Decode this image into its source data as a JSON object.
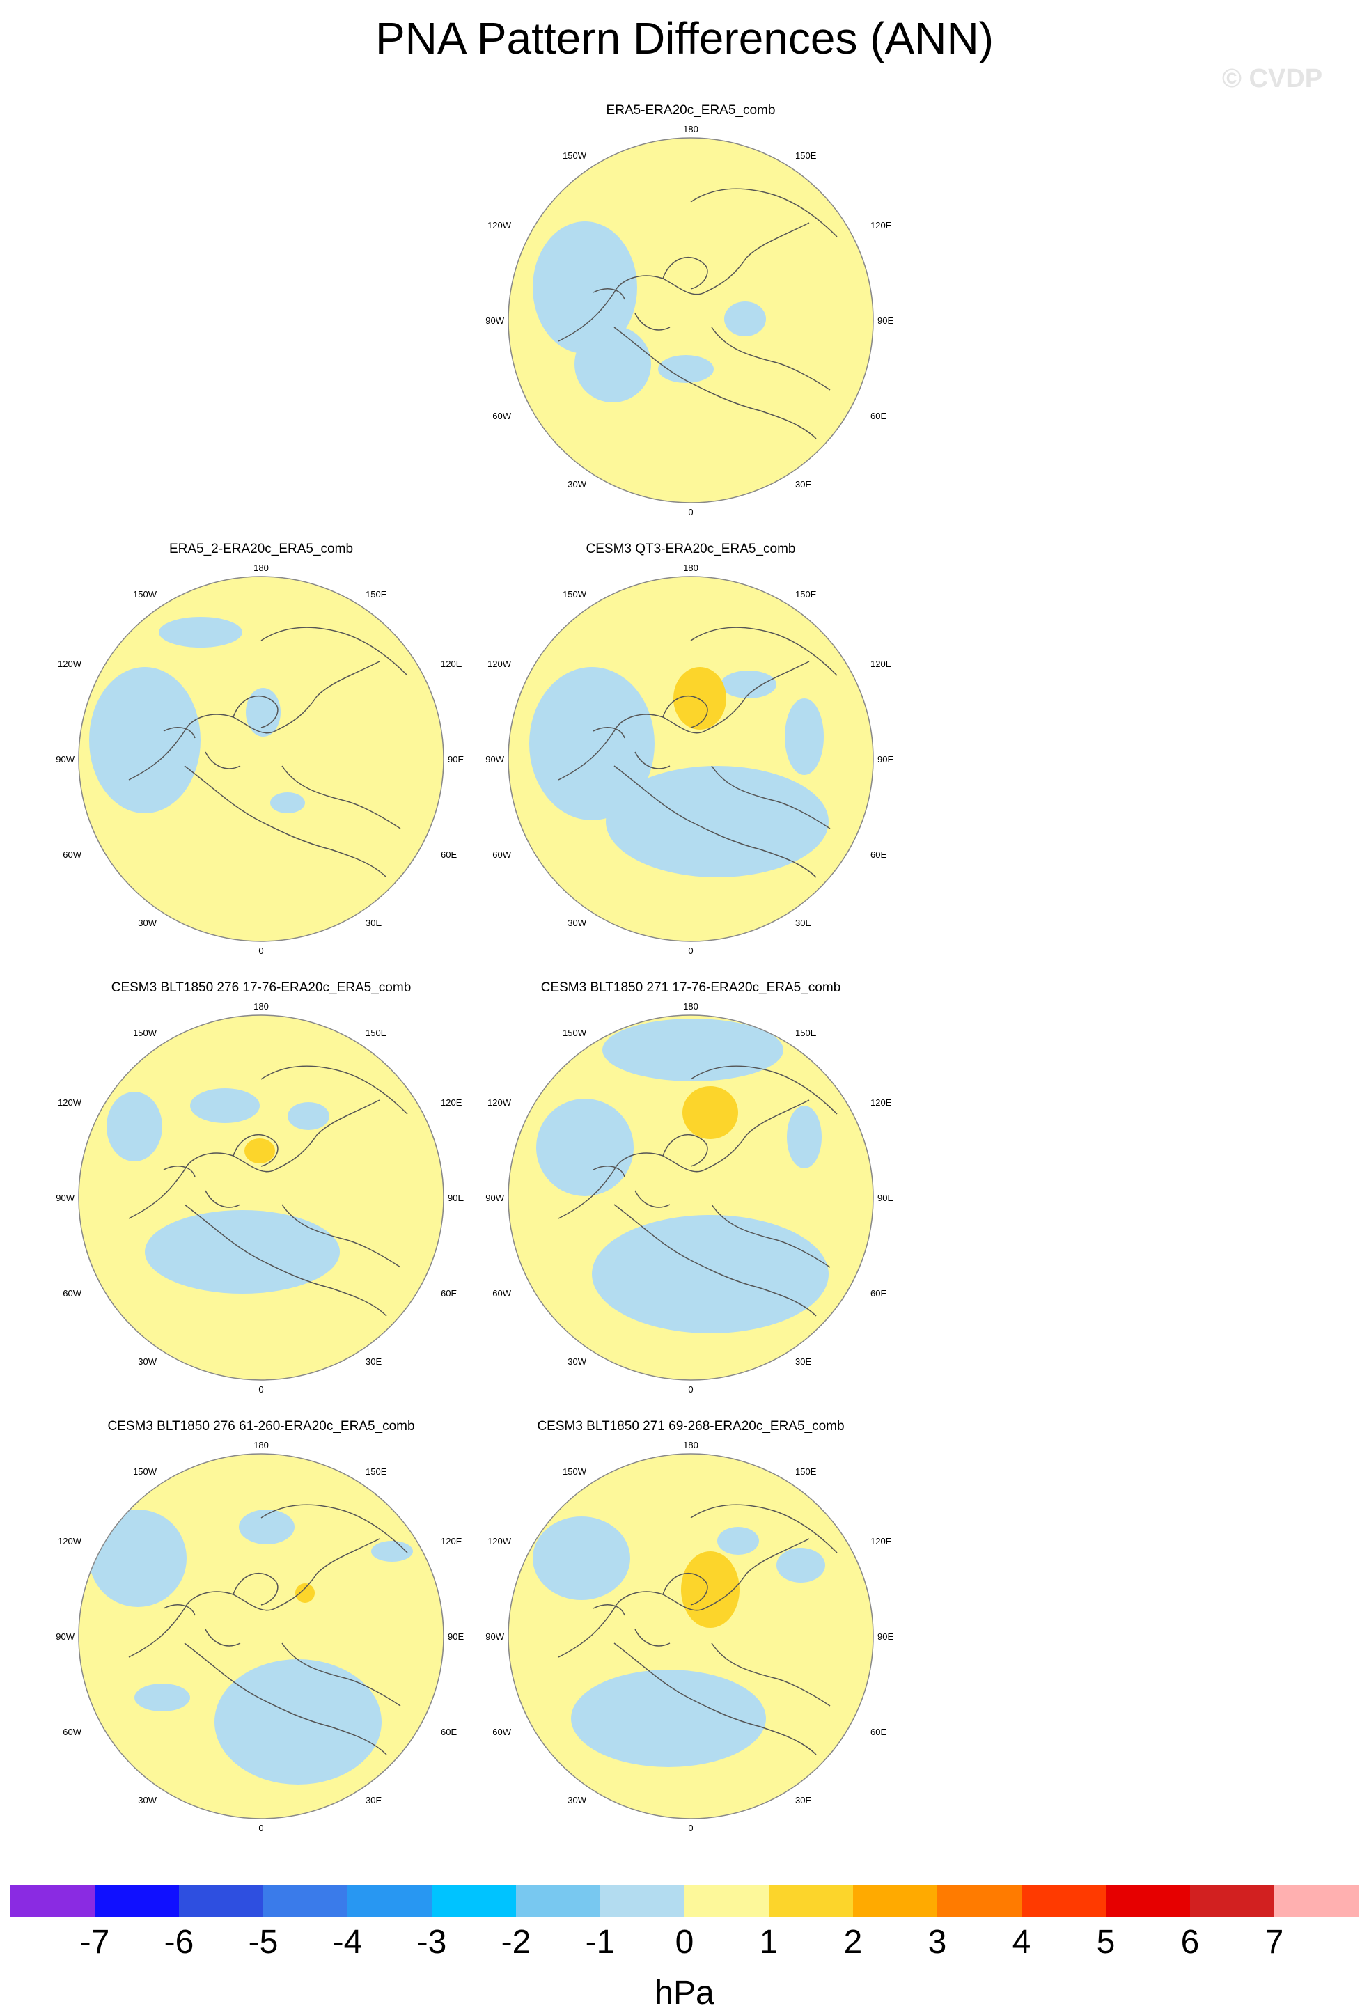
{
  "title": "PNA Pattern Differences (ANN)",
  "watermark": "© CVDP",
  "units": "hPa",
  "colors": {
    "ocean_neg": "#b3dcf0",
    "pos": "#fdf89a",
    "pos2": "#fcd52b",
    "outline": "#555555"
  },
  "panels": [
    {
      "title": "ERA5-ERA20c_ERA5_comb",
      "icon": "polar-map"
    },
    {
      "title": "ERA5_2-ERA20c_ERA5_comb",
      "icon": "polar-map"
    },
    {
      "title": "CESM3 QT3-ERA20c_ERA5_comb",
      "icon": "polar-map"
    },
    {
      "title": "CESM3 BLT1850 276 17-76-ERA20c_ERA5_comb",
      "icon": "polar-map"
    },
    {
      "title": "CESM3 BLT1850 271 17-76-ERA20c_ERA5_comb",
      "icon": "polar-map"
    },
    {
      "title": "CESM3 BLT1850 276 61-260-ERA20c_ERA5_comb",
      "icon": "polar-map"
    },
    {
      "title": "CESM3 BLT1850 271 69-268-ERA20c_ERA5_comb",
      "icon": "polar-map"
    }
  ],
  "map_labels": {
    "top": "180",
    "bottom": "0",
    "l150": "150W",
    "r150": "150E",
    "l120": "120W",
    "r120": "120E",
    "l90": "90W",
    "r90": "90E",
    "l60": "60W",
    "r60": "60E",
    "l30": "30W",
    "r30": "30E"
  },
  "colorbar": {
    "colors": [
      "#8a2be2",
      "#1010ff",
      "#2e4fe0",
      "#3a7bea",
      "#2897f2",
      "#00c3ff",
      "#78c8f0",
      "#b3dcf0",
      "#fdf89a",
      "#fcd52b",
      "#ffaa00",
      "#ff7b00",
      "#ff3a00",
      "#e60000",
      "#d22020",
      "#ffb0b0"
    ],
    "ticks": [
      "-7",
      "-6",
      "-5",
      "-4",
      "-3",
      "-2",
      "-1",
      "0",
      "1",
      "2",
      "3",
      "4",
      "5",
      "6",
      "7"
    ]
  }
}
